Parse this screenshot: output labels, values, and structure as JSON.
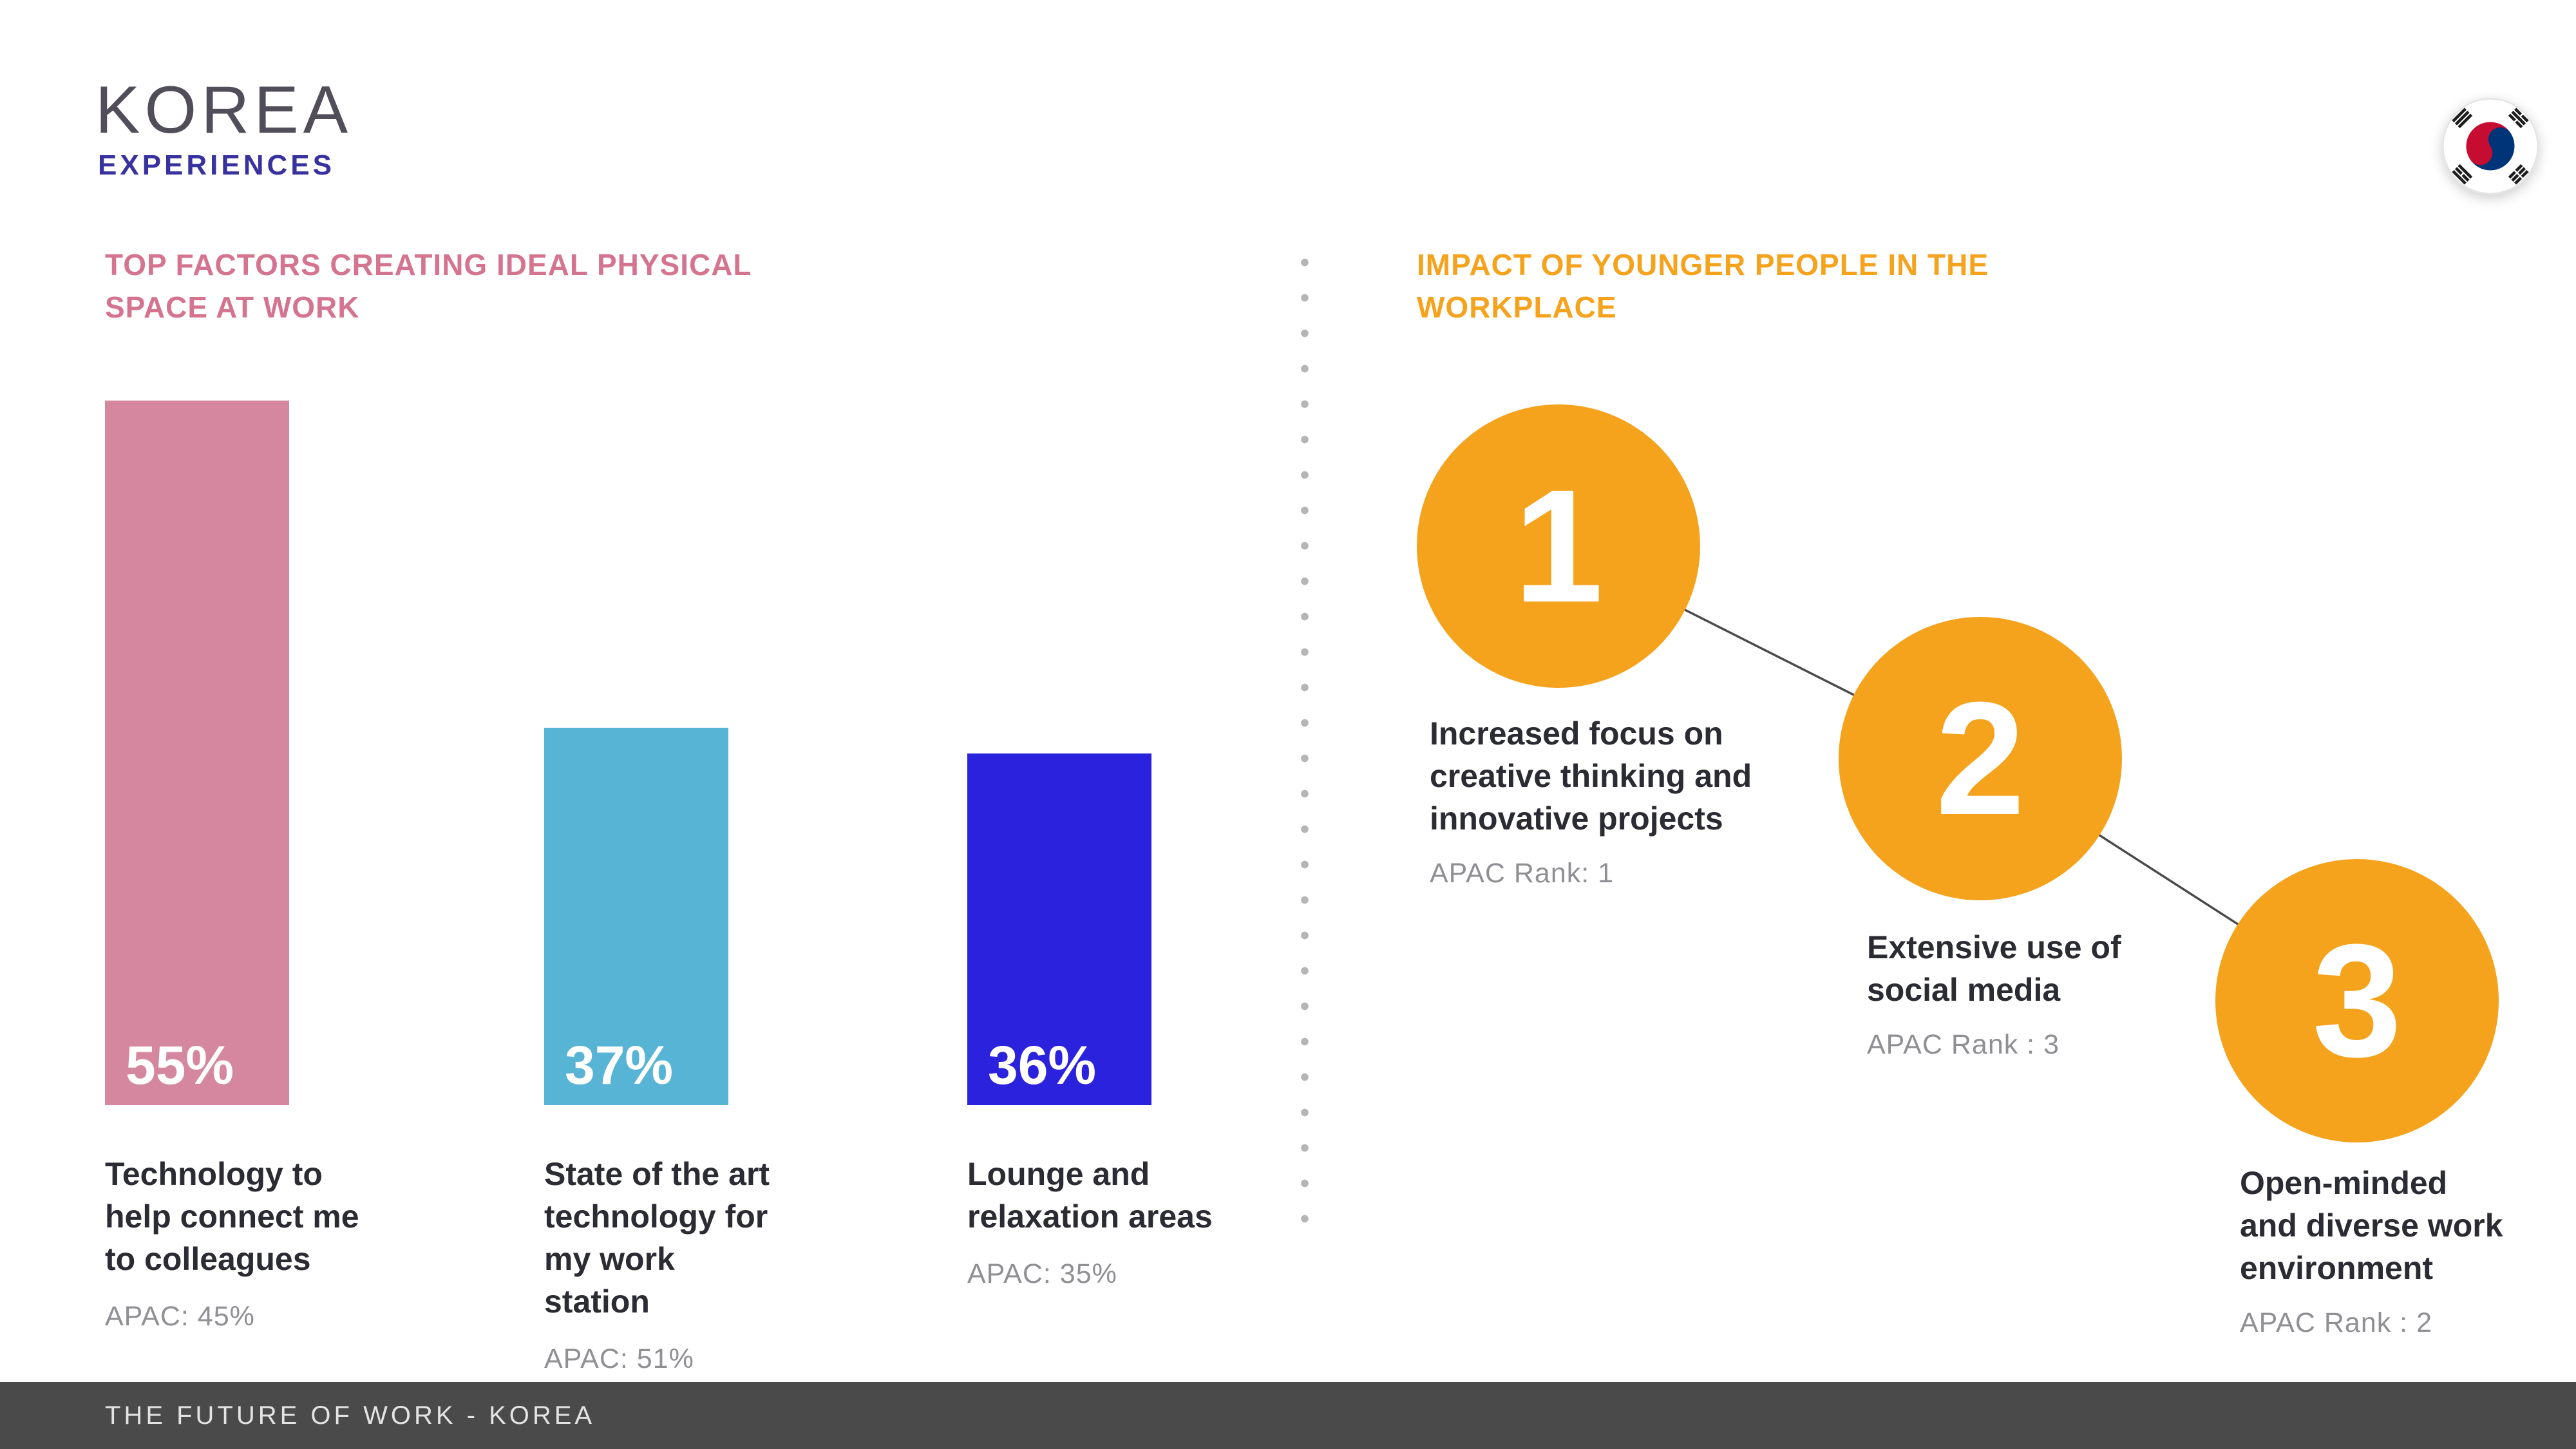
{
  "header": {
    "title": "KOREA",
    "subtitle": "EXPERIENCES"
  },
  "icons": {
    "flag": "south-korea-flag-icon"
  },
  "chart_data": {
    "type": "bar",
    "title": "TOP FACTORS CREATING IDEAL PHYSICAL\nSPACE AT WORK",
    "heading_color": "#d4748f",
    "categories": [
      "Technology to\nhelp connect me\nto colleagues",
      "State of the art\ntechnology for\nmy work\nstation",
      "Lounge and\nrelaxation areas"
    ],
    "values": [
      55,
      37,
      36
    ],
    "value_labels": [
      "55%",
      "37%",
      "36%"
    ],
    "apac_comparison": [
      "APAC: 45%",
      "APAC: 51%",
      "APAC: 35%"
    ],
    "bar_colors": [
      "#d5879f",
      "#58b4d5",
      "#2b22dd"
    ],
    "ylim": [
      0,
      60
    ],
    "grid": false,
    "legend": false,
    "pixel_heights": [
      1094,
      586,
      546
    ]
  },
  "right_section": {
    "heading": "IMPACT OF YOUNGER PEOPLE IN THE\nWORKPLACE",
    "heading_color": "#f5a21d",
    "accent_color": "#f5a21d",
    "items": [
      {
        "rank": "1",
        "label": "Increased focus on\ncreative thinking and\ninnovative projects",
        "apac": "APAC Rank: 1"
      },
      {
        "rank": "2",
        "label": "Extensive use of\nsocial media",
        "apac": "APAC Rank : 3"
      },
      {
        "rank": "3",
        "label": "Open-minded\nand diverse work\nenvironment",
        "apac": "APAC Rank : 2"
      }
    ]
  },
  "footer": {
    "text": "THE FUTURE OF WORK - KOREA"
  }
}
